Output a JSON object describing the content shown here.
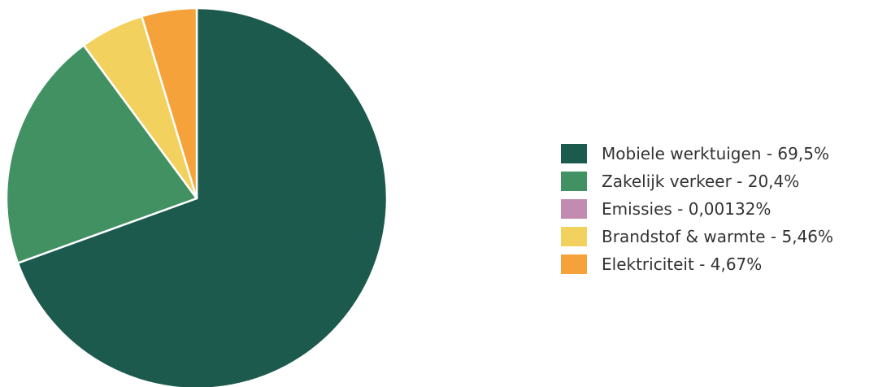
{
  "chart_data": {
    "type": "pie",
    "legend_position": "right",
    "slices": [
      {
        "label": "Mobiele werktuigen - 69,5%",
        "name": "Mobiele werktuigen",
        "value": 69.5,
        "color": "#1c5a4e"
      },
      {
        "label": "Zakelijk verkeer - 20,4%",
        "name": "Zakelijk verkeer",
        "value": 20.4,
        "color": "#429163"
      },
      {
        "label": "Emissies - 0,00132%",
        "name": "Emissies",
        "value": 0.00132,
        "color": "#c38bb1"
      },
      {
        "label": "Brandstof & warmte - 5,46%",
        "name": "Brandstof & warmte",
        "value": 5.46,
        "color": "#f2d15e"
      },
      {
        "label": "Elektriciteit - 4,67%",
        "name": "Elektriciteit",
        "value": 4.67,
        "color": "#f5a23a"
      }
    ]
  }
}
